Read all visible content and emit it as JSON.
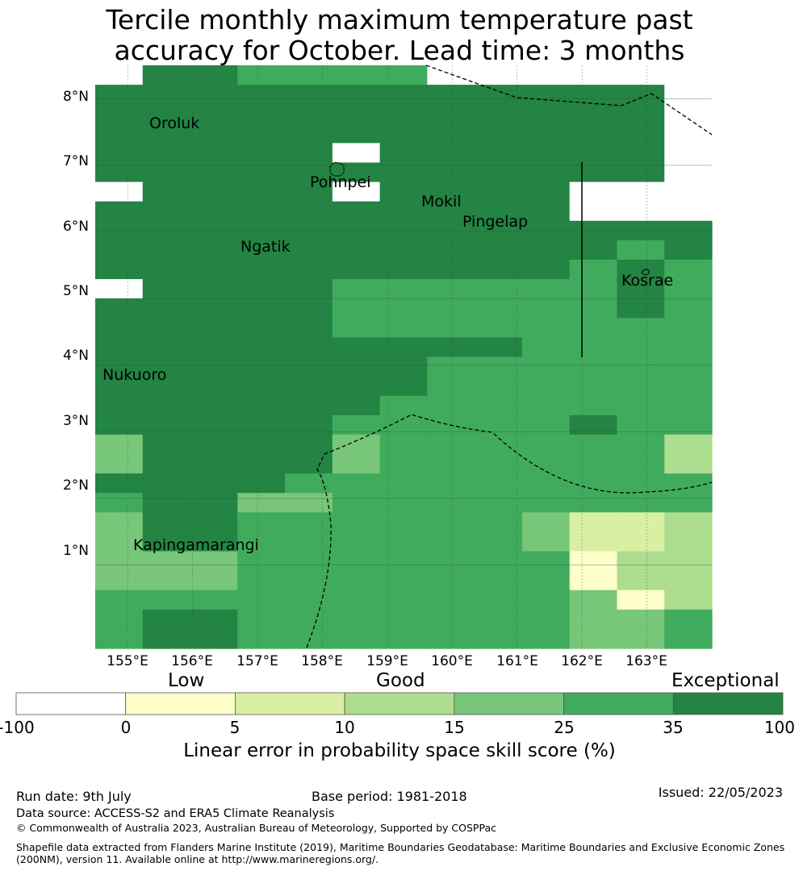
{
  "title": {
    "line1": "Tercile monthly maximum temperature past",
    "line2": "accuracy for October. Lead time: 3 months"
  },
  "map": {
    "lat_range": [
      -0.25,
      8.5
    ],
    "lon_range": [
      154.5,
      164.0
    ],
    "grid_lines": true,
    "x_ticks": [
      "155°E",
      "156°E",
      "157°E",
      "158°E",
      "159°E",
      "160°E",
      "161°E",
      "162°E",
      "163°E"
    ],
    "y_ticks": [
      "1°N",
      "2°N",
      "3°N",
      "4°N",
      "5°N",
      "6°N",
      "7°N",
      "8°N"
    ],
    "skill_grid_rows_north_to_south": [
      "6554444666666",
      "5555555555556",
      "5555555555556",
      "5555555555556",
      "5555565555556",
      "5555555555556",
      "6555565555666",
      "5555555555666",
      "5555555555555",
      "5555555555545",
      "5555555555454",
      "6555544444454",
      "5555544444454",
      "5555544444444",
      "5555555554444",
      "5555555444444",
      "5555555444444",
      "5555554444444",
      "5555544444544",
      "3555534444442",
      "3555534444442",
      "5555444444444",
      "4553344444444",
      "3554444443112",
      "3554444443112",
      "3334444444022",
      "3334444444022",
      "4444444444302",
      "4554444444334",
      "4554444444334"
    ],
    "places": [
      {
        "name": "Oroluk"
      },
      {
        "name": "Pohnpei"
      },
      {
        "name": "Mokil"
      },
      {
        "name": "Pingelap"
      },
      {
        "name": "Ngatik"
      },
      {
        "name": "Kosrae"
      },
      {
        "name": "Nukuoro"
      },
      {
        "name": "Kapingamarangi"
      }
    ]
  },
  "colorbar": {
    "categories": [
      "Low",
      "Good",
      "Exceptional"
    ],
    "ticks": [
      "-100",
      "0",
      "5",
      "10",
      "15",
      "25",
      "35",
      "100"
    ],
    "colors": [
      "#ffffff",
      "#ffffcc",
      "#d9f0a3",
      "#addd8e",
      "#78c679",
      "#41ab5d",
      "#238443"
    ],
    "label": "Linear error in probability space skill score (%)"
  },
  "footer": {
    "run_date": "Run date: 9th July",
    "base_period": "Base period: 1981-2018",
    "issued": "Issued: 22/05/2023",
    "data_source": "Data source: ACCESS-S2 and ERA5 Climate Reanalysis",
    "copyright": "© Commonwealth of Australia 2023, Australian Bureau of Meteorology, Supported by COSPPac",
    "shapefile_line1": "Shapefile data extracted from Flanders Marine Institute (2019), Maritime Boundaries Geodatabase: Maritime Boundaries and Exclusive Economic Zones",
    "shapefile_line2": "(200NM), version 11. Available online at http://www.marineregions.org/."
  }
}
